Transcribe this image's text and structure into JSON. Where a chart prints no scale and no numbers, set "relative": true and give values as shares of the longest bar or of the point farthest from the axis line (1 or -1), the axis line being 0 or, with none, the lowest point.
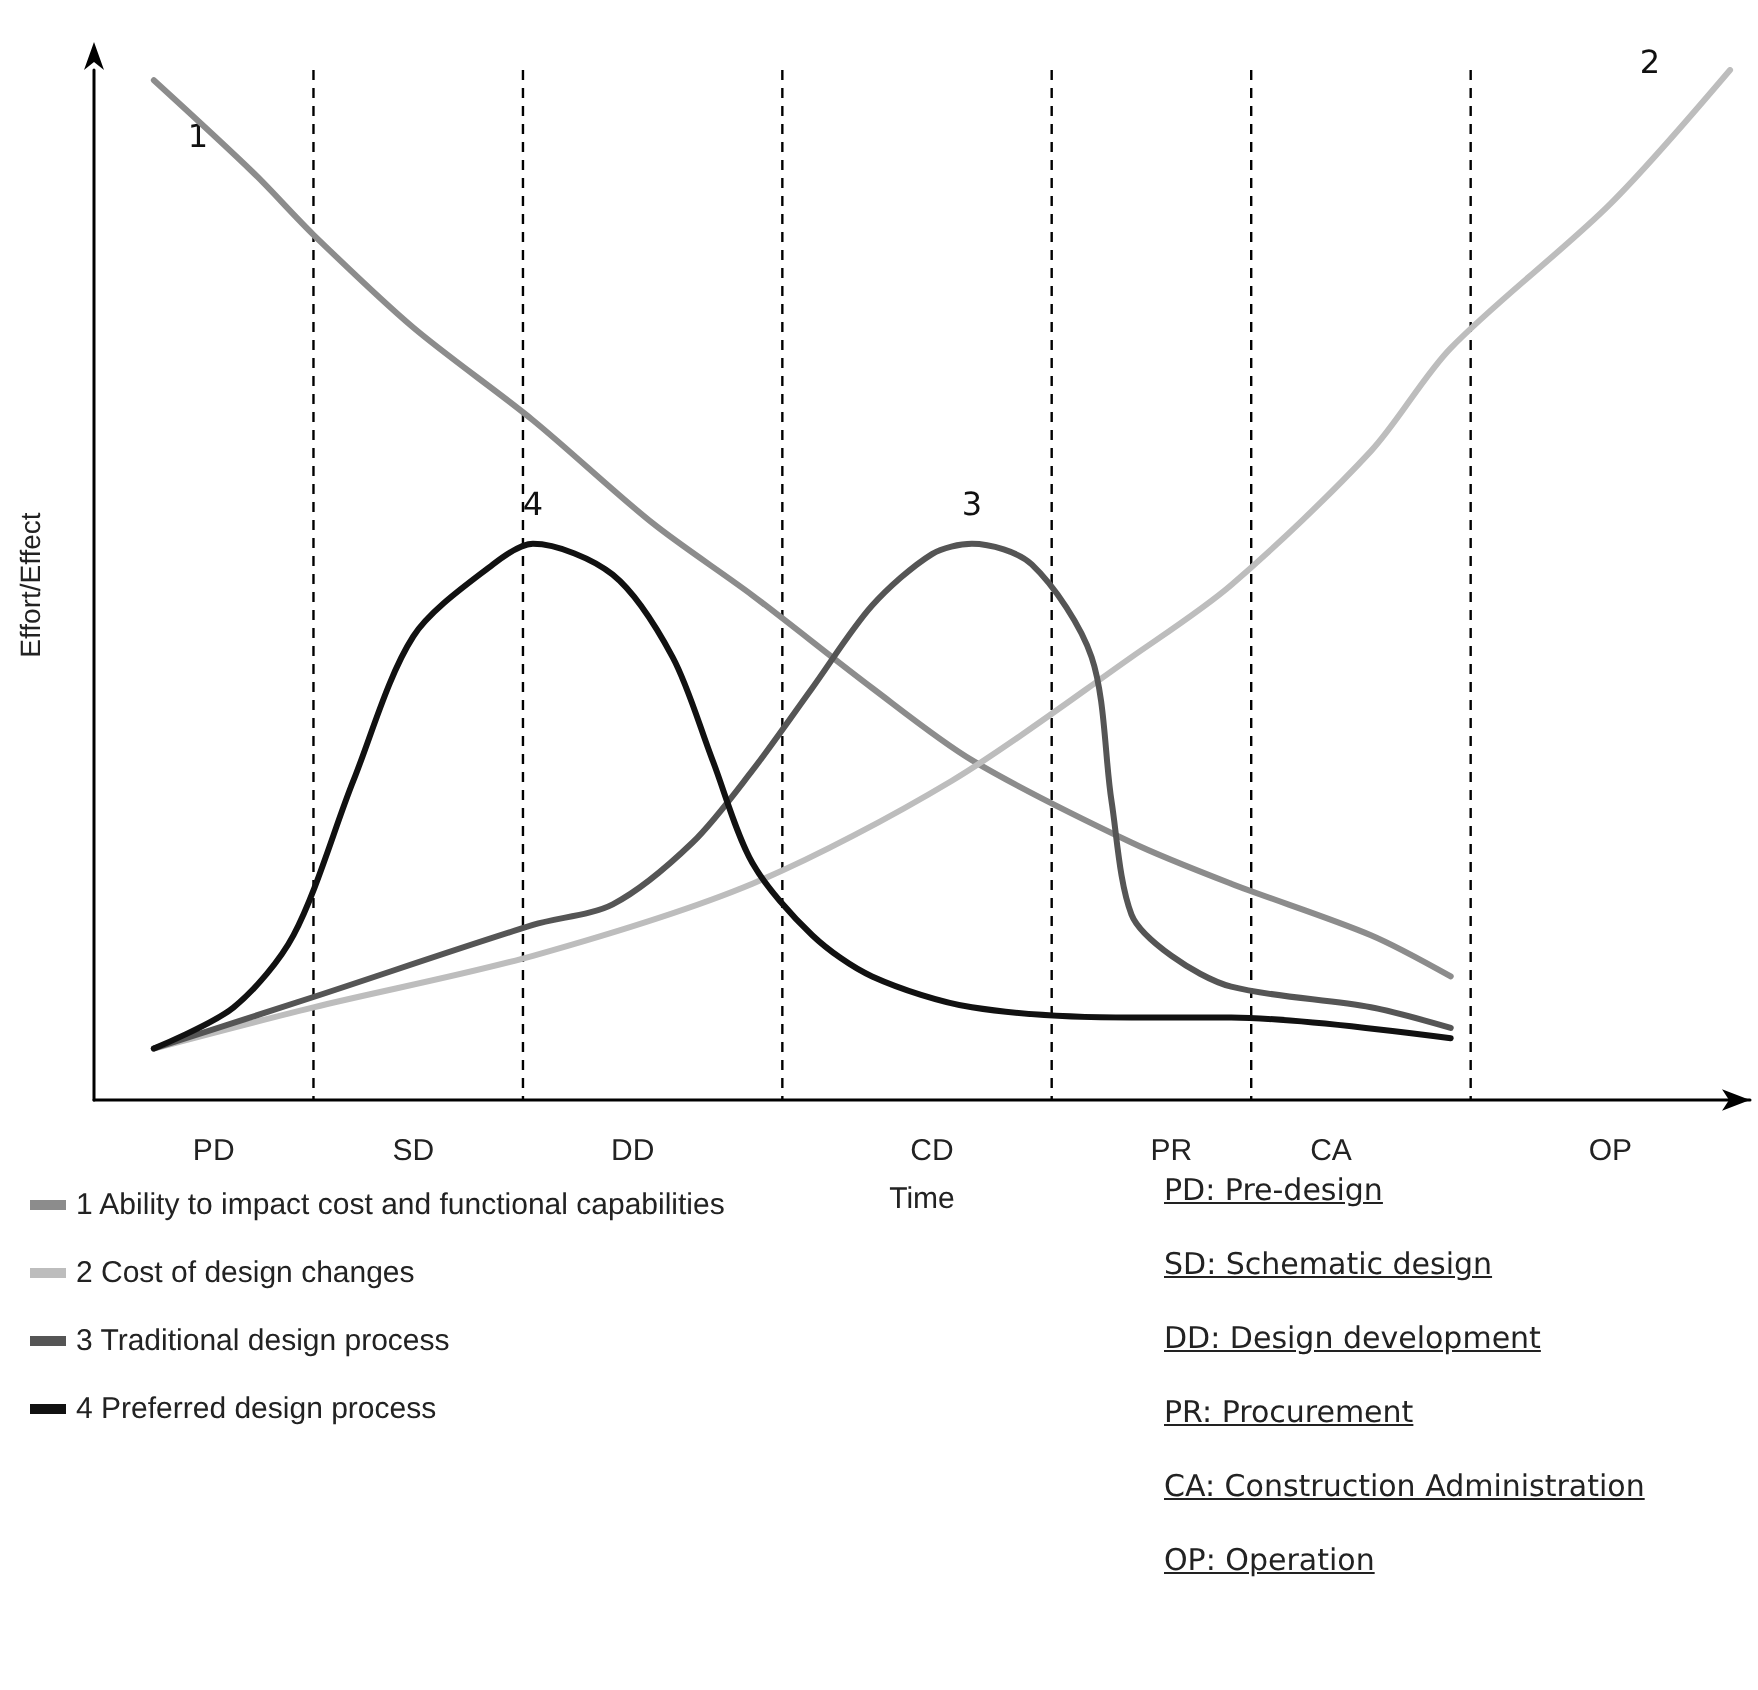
{
  "chart_data": {
    "type": "line",
    "relative": true,
    "xlabel": "Time",
    "ylabel": "Effort/Effect",
    "categories": [
      null,
      null,
      null,
      null,
      null,
      null,
      "PD",
      null,
      null,
      null,
      null,
      null,
      null,
      null,
      null,
      null,
      "SD",
      null,
      null,
      null,
      null,
      null,
      null,
      null,
      null,
      null,
      null,
      "DD",
      null,
      null,
      null,
      null,
      null,
      null,
      null,
      null,
      null,
      null,
      null,
      null,
      null,
      null,
      "CD",
      null,
      null,
      null,
      null,
      null,
      null,
      null,
      null,
      null,
      null,
      null,
      "PR",
      null,
      null,
      null,
      null,
      null,
      null,
      null,
      "CA",
      null,
      null,
      null,
      null,
      null,
      null,
      null,
      null,
      null,
      null,
      null,
      null,
      null,
      "OP",
      null,
      null,
      null,
      null,
      null,
      null,
      null
    ],
    "series": [
      {
        "name": "1 Ability to impact cost and functional capabilities",
        "color": "#8c8c8c",
        "values": [
          null,
          null,
          null,
          0.99,
          null,
          null,
          null,
          null,
          0.9,
          null,
          null,
          0.84,
          null,
          null,
          null,
          null,
          0.75,
          null,
          null,
          null,
          null,
          null,
          0.66,
          null,
          null,
          null,
          null,
          null,
          0.56,
          null,
          null,
          null,
          null,
          0.49,
          null,
          null,
          null,
          null,
          null,
          0.4,
          null,
          null,
          null,
          null,
          0.33,
          null,
          null,
          null,
          null,
          null,
          null,
          null,
          0.25,
          null,
          null,
          null,
          null,
          0.21,
          null,
          null,
          null,
          null,
          null,
          null,
          0.16,
          null,
          null,
          null,
          0.12,
          null,
          null,
          null,
          null,
          null,
          null,
          null,
          null,
          null,
          null,
          null,
          null,
          null,
          null,
          null
        ]
      },
      {
        "name": "2 Cost of design changes",
        "color": "#bdbdbd",
        "values": [
          null,
          null,
          null,
          0.05,
          null,
          null,
          null,
          null,
          null,
          null,
          null,
          0.09,
          null,
          null,
          null,
          null,
          null,
          null,
          null,
          null,
          null,
          null,
          0.14,
          null,
          null,
          null,
          null,
          null,
          null,
          null,
          null,
          null,
          null,
          0.21,
          null,
          null,
          null,
          null,
          null,
          null,
          null,
          null,
          null,
          0.31,
          null,
          null,
          null,
          null,
          null,
          null,
          null,
          null,
          0.43,
          null,
          null,
          null,
          null,
          0.5,
          null,
          null,
          null,
          null,
          null,
          null,
          0.63,
          null,
          null,
          null,
          0.73,
          null,
          null,
          null,
          null,
          null,
          null,
          null,
          0.87,
          null,
          null,
          null,
          null,
          null,
          1,
          null
        ]
      },
      {
        "name": "3 Traditional design process",
        "color": "#555555",
        "values": [
          null,
          null,
          null,
          0.05,
          null,
          null,
          null,
          null,
          null,
          null,
          null,
          0.1,
          null,
          null,
          null,
          null,
          null,
          null,
          null,
          null,
          null,
          null,
          0.17,
          null,
          null,
          null,
          0.19,
          null,
          null,
          null,
          0.25,
          null,
          null,
          0.32,
          null,
          null,
          0.4,
          null,
          null,
          0.48,
          null,
          null,
          0.53,
          null,
          0.54,
          null,
          null,
          0.52,
          null,
          null,
          0.43,
          0.29,
          0.18,
          null,
          0.14,
          null,
          null,
          0.11,
          null,
          null,
          null,
          null,
          null,
          null,
          0.09,
          null,
          null,
          null,
          0.07,
          null,
          null,
          null,
          null,
          null,
          null,
          null,
          null,
          null,
          null,
          null,
          null,
          null,
          null,
          null
        ]
      },
      {
        "name": "4 Preferred design process",
        "color": "#111111",
        "values": [
          null,
          null,
          null,
          0.05,
          null,
          null,
          null,
          0.09,
          null,
          null,
          0.16,
          null,
          null,
          0.31,
          null,
          null,
          0.45,
          null,
          null,
          null,
          0.52,
          null,
          0.54,
          null,
          null,
          null,
          0.51,
          null,
          null,
          0.43,
          null,
          0.33,
          null,
          0.23,
          null,
          null,
          0.16,
          null,
          null,
          0.12,
          null,
          null,
          null,
          null,
          0.09,
          null,
          null,
          null,
          null,
          null,
          null,
          null,
          0.08,
          null,
          null,
          null,
          null,
          0.08,
          null,
          null,
          null,
          null,
          null,
          null,
          null,
          null,
          null,
          null,
          0.06,
          null,
          null,
          null,
          null,
          null,
          null,
          null,
          null,
          null,
          null,
          null,
          null,
          null,
          null,
          null
        ]
      }
    ],
    "annotations": [
      "1",
      "2",
      "3",
      "4",
      "PD: Pre-design",
      "SD: Schematic design",
      "DD: Design development",
      "PR: Procurement",
      "CA: Construction Administration",
      "OP: Operation"
    ],
    "legend": "bottom left",
    "grid": false,
    "marker": "none",
    "line_style": "solid"
  }
}
